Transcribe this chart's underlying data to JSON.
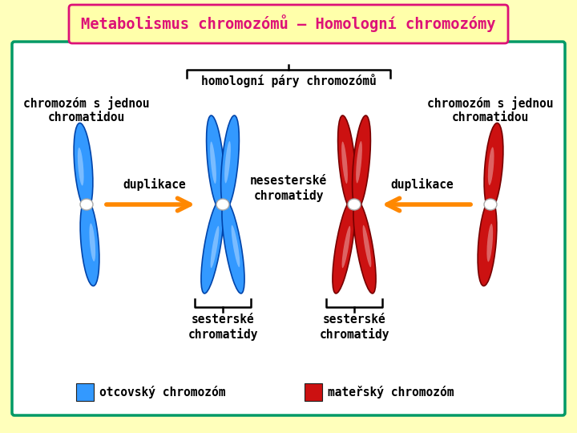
{
  "title": "Metabolismus chromozómů – Homologní chromozómy",
  "title_color": "#dd1177",
  "title_bg": "#ffffaa",
  "title_border": "#dd1177",
  "bg_color": "#ffffbb",
  "inner_bg": "#ffffff",
  "inner_border": "#009966",
  "blue_color": "#3399ff",
  "blue_mid": "#1166cc",
  "blue_dark": "#0044aa",
  "red_color": "#cc1111",
  "red_mid": "#991111",
  "red_dark": "#770000",
  "arrow_color": "#ff8800",
  "text_color": "#000000",
  "label_left_top": "chromozóm s jednou\nchromatidou",
  "label_center_top": "homologní páry chromozómů",
  "label_right_top": "chromozóm s jednou\nchromatidou",
  "label_duplikace_left": "duplikace",
  "label_duplikace_right": "duplikace",
  "label_nesesterske": "nesesterské\nchromatidy",
  "label_sesterske_left": "sesterské\nchromatidy",
  "label_sesterske_right": "sesterské\nchromatidy",
  "legend_blue": "otcovský chromozóm",
  "legend_red": "mateřský chromozóm"
}
